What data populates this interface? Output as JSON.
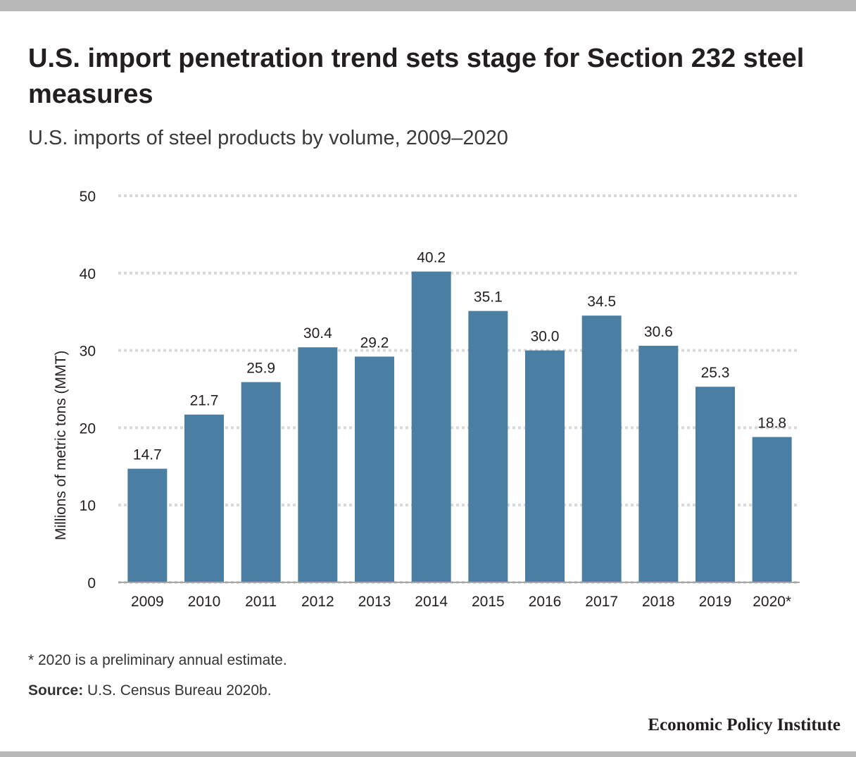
{
  "title": "U.S. import penetration trend sets stage for Section 232 steel measures",
  "subtitle": "U.S. imports of steel products by volume, 2009–2020",
  "note": "* 2020 is a preliminary annual estimate.",
  "source_label": "Source:",
  "source_text": "U.S. Census Bureau 2020b.",
  "brand": "Economic Policy Institute",
  "colors": {
    "bar": "#4a7fa3",
    "grid": "#d9d9d9",
    "axis": "#a6a6a6"
  },
  "chart_data": {
    "type": "bar",
    "categories": [
      "2009",
      "2010",
      "2011",
      "2012",
      "2013",
      "2014",
      "2015",
      "2016",
      "2017",
      "2018",
      "2019",
      "2020*"
    ],
    "values": [
      14.7,
      21.7,
      25.9,
      30.4,
      29.2,
      40.2,
      35.1,
      30.0,
      34.5,
      30.6,
      25.3,
      18.8
    ],
    "value_labels": [
      "14.7",
      "21.7",
      "25.9",
      "30.4",
      "29.2",
      "40.2",
      "35.1",
      "30.0",
      "34.5",
      "30.6",
      "25.3",
      "18.8"
    ],
    "ylabel": "Millions of metric tons (MMT)",
    "xlabel": "",
    "ylim": [
      0,
      50
    ],
    "yticks": [
      0,
      10,
      20,
      30,
      40,
      50
    ],
    "grid": true,
    "grid_style": "dotted"
  }
}
